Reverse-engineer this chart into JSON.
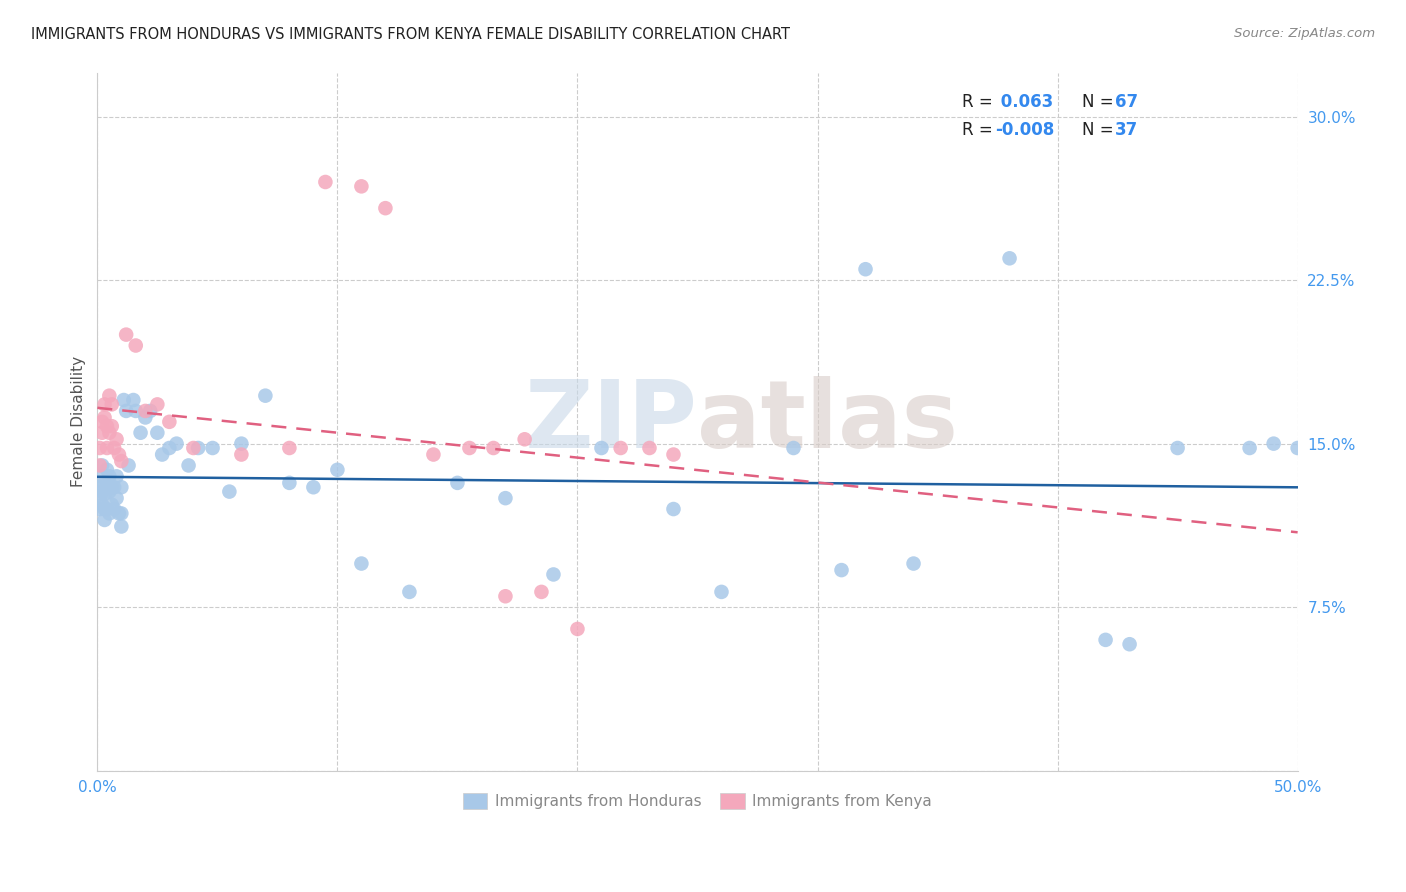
{
  "title": "IMMIGRANTS FROM HONDURAS VS IMMIGRANTS FROM KENYA FEMALE DISABILITY CORRELATION CHART",
  "source": "Source: ZipAtlas.com",
  "ylabel": "Female Disability",
  "xlim": [
    0.0,
    0.5
  ],
  "ylim": [
    0.0,
    0.32
  ],
  "honduras_R": 0.063,
  "honduras_N": 67,
  "kenya_R": -0.008,
  "kenya_N": 37,
  "honduras_color": "#a8c8e8",
  "kenya_color": "#f4a8bc",
  "trend_honduras_color": "#2060a0",
  "trend_kenya_color": "#e06080",
  "tick_color": "#4499ee",
  "label_color": "#555555",
  "grid_color": "#cccccc",
  "watermark_zip_color": "#c8d8e8",
  "watermark_atlas_color": "#d8ccc8",
  "legend_R_label_color": "#222222",
  "legend_value_color": "#3388ee",
  "bottom_legend_color": "#888888",
  "honduras_x": [
    0.001,
    0.001,
    0.001,
    0.002,
    0.002,
    0.002,
    0.002,
    0.003,
    0.003,
    0.003,
    0.003,
    0.004,
    0.004,
    0.004,
    0.005,
    0.005,
    0.005,
    0.006,
    0.006,
    0.007,
    0.007,
    0.008,
    0.008,
    0.009,
    0.01,
    0.01,
    0.01,
    0.011,
    0.012,
    0.013,
    0.015,
    0.016,
    0.018,
    0.02,
    0.022,
    0.025,
    0.027,
    0.03,
    0.033,
    0.038,
    0.042,
    0.048,
    0.055,
    0.06,
    0.07,
    0.08,
    0.09,
    0.1,
    0.11,
    0.13,
    0.15,
    0.17,
    0.19,
    0.21,
    0.24,
    0.26,
    0.29,
    0.31,
    0.34,
    0.38,
    0.42,
    0.45,
    0.48,
    0.49,
    0.5,
    0.32,
    0.43
  ],
  "honduras_y": [
    0.13,
    0.125,
    0.12,
    0.14,
    0.135,
    0.128,
    0.122,
    0.132,
    0.127,
    0.12,
    0.115,
    0.138,
    0.13,
    0.12,
    0.135,
    0.128,
    0.118,
    0.13,
    0.122,
    0.13,
    0.12,
    0.135,
    0.125,
    0.118,
    0.13,
    0.118,
    0.112,
    0.17,
    0.165,
    0.14,
    0.17,
    0.165,
    0.155,
    0.162,
    0.165,
    0.155,
    0.145,
    0.148,
    0.15,
    0.14,
    0.148,
    0.148,
    0.128,
    0.15,
    0.172,
    0.132,
    0.13,
    0.138,
    0.095,
    0.082,
    0.132,
    0.125,
    0.09,
    0.148,
    0.12,
    0.082,
    0.148,
    0.092,
    0.095,
    0.235,
    0.06,
    0.148,
    0.148,
    0.15,
    0.148,
    0.23,
    0.058
  ],
  "kenya_x": [
    0.001,
    0.001,
    0.002,
    0.002,
    0.003,
    0.003,
    0.004,
    0.004,
    0.005,
    0.005,
    0.006,
    0.006,
    0.007,
    0.008,
    0.009,
    0.01,
    0.012,
    0.016,
    0.02,
    0.025,
    0.03,
    0.04,
    0.06,
    0.08,
    0.095,
    0.11,
    0.12,
    0.14,
    0.155,
    0.165,
    0.17,
    0.178,
    0.185,
    0.2,
    0.218,
    0.23,
    0.24
  ],
  "kenya_y": [
    0.148,
    0.14,
    0.16,
    0.155,
    0.168,
    0.162,
    0.158,
    0.148,
    0.172,
    0.155,
    0.168,
    0.158,
    0.148,
    0.152,
    0.145,
    0.142,
    0.2,
    0.195,
    0.165,
    0.168,
    0.16,
    0.148,
    0.145,
    0.148,
    0.27,
    0.268,
    0.258,
    0.145,
    0.148,
    0.148,
    0.08,
    0.152,
    0.082,
    0.065,
    0.148,
    0.148,
    0.145
  ]
}
